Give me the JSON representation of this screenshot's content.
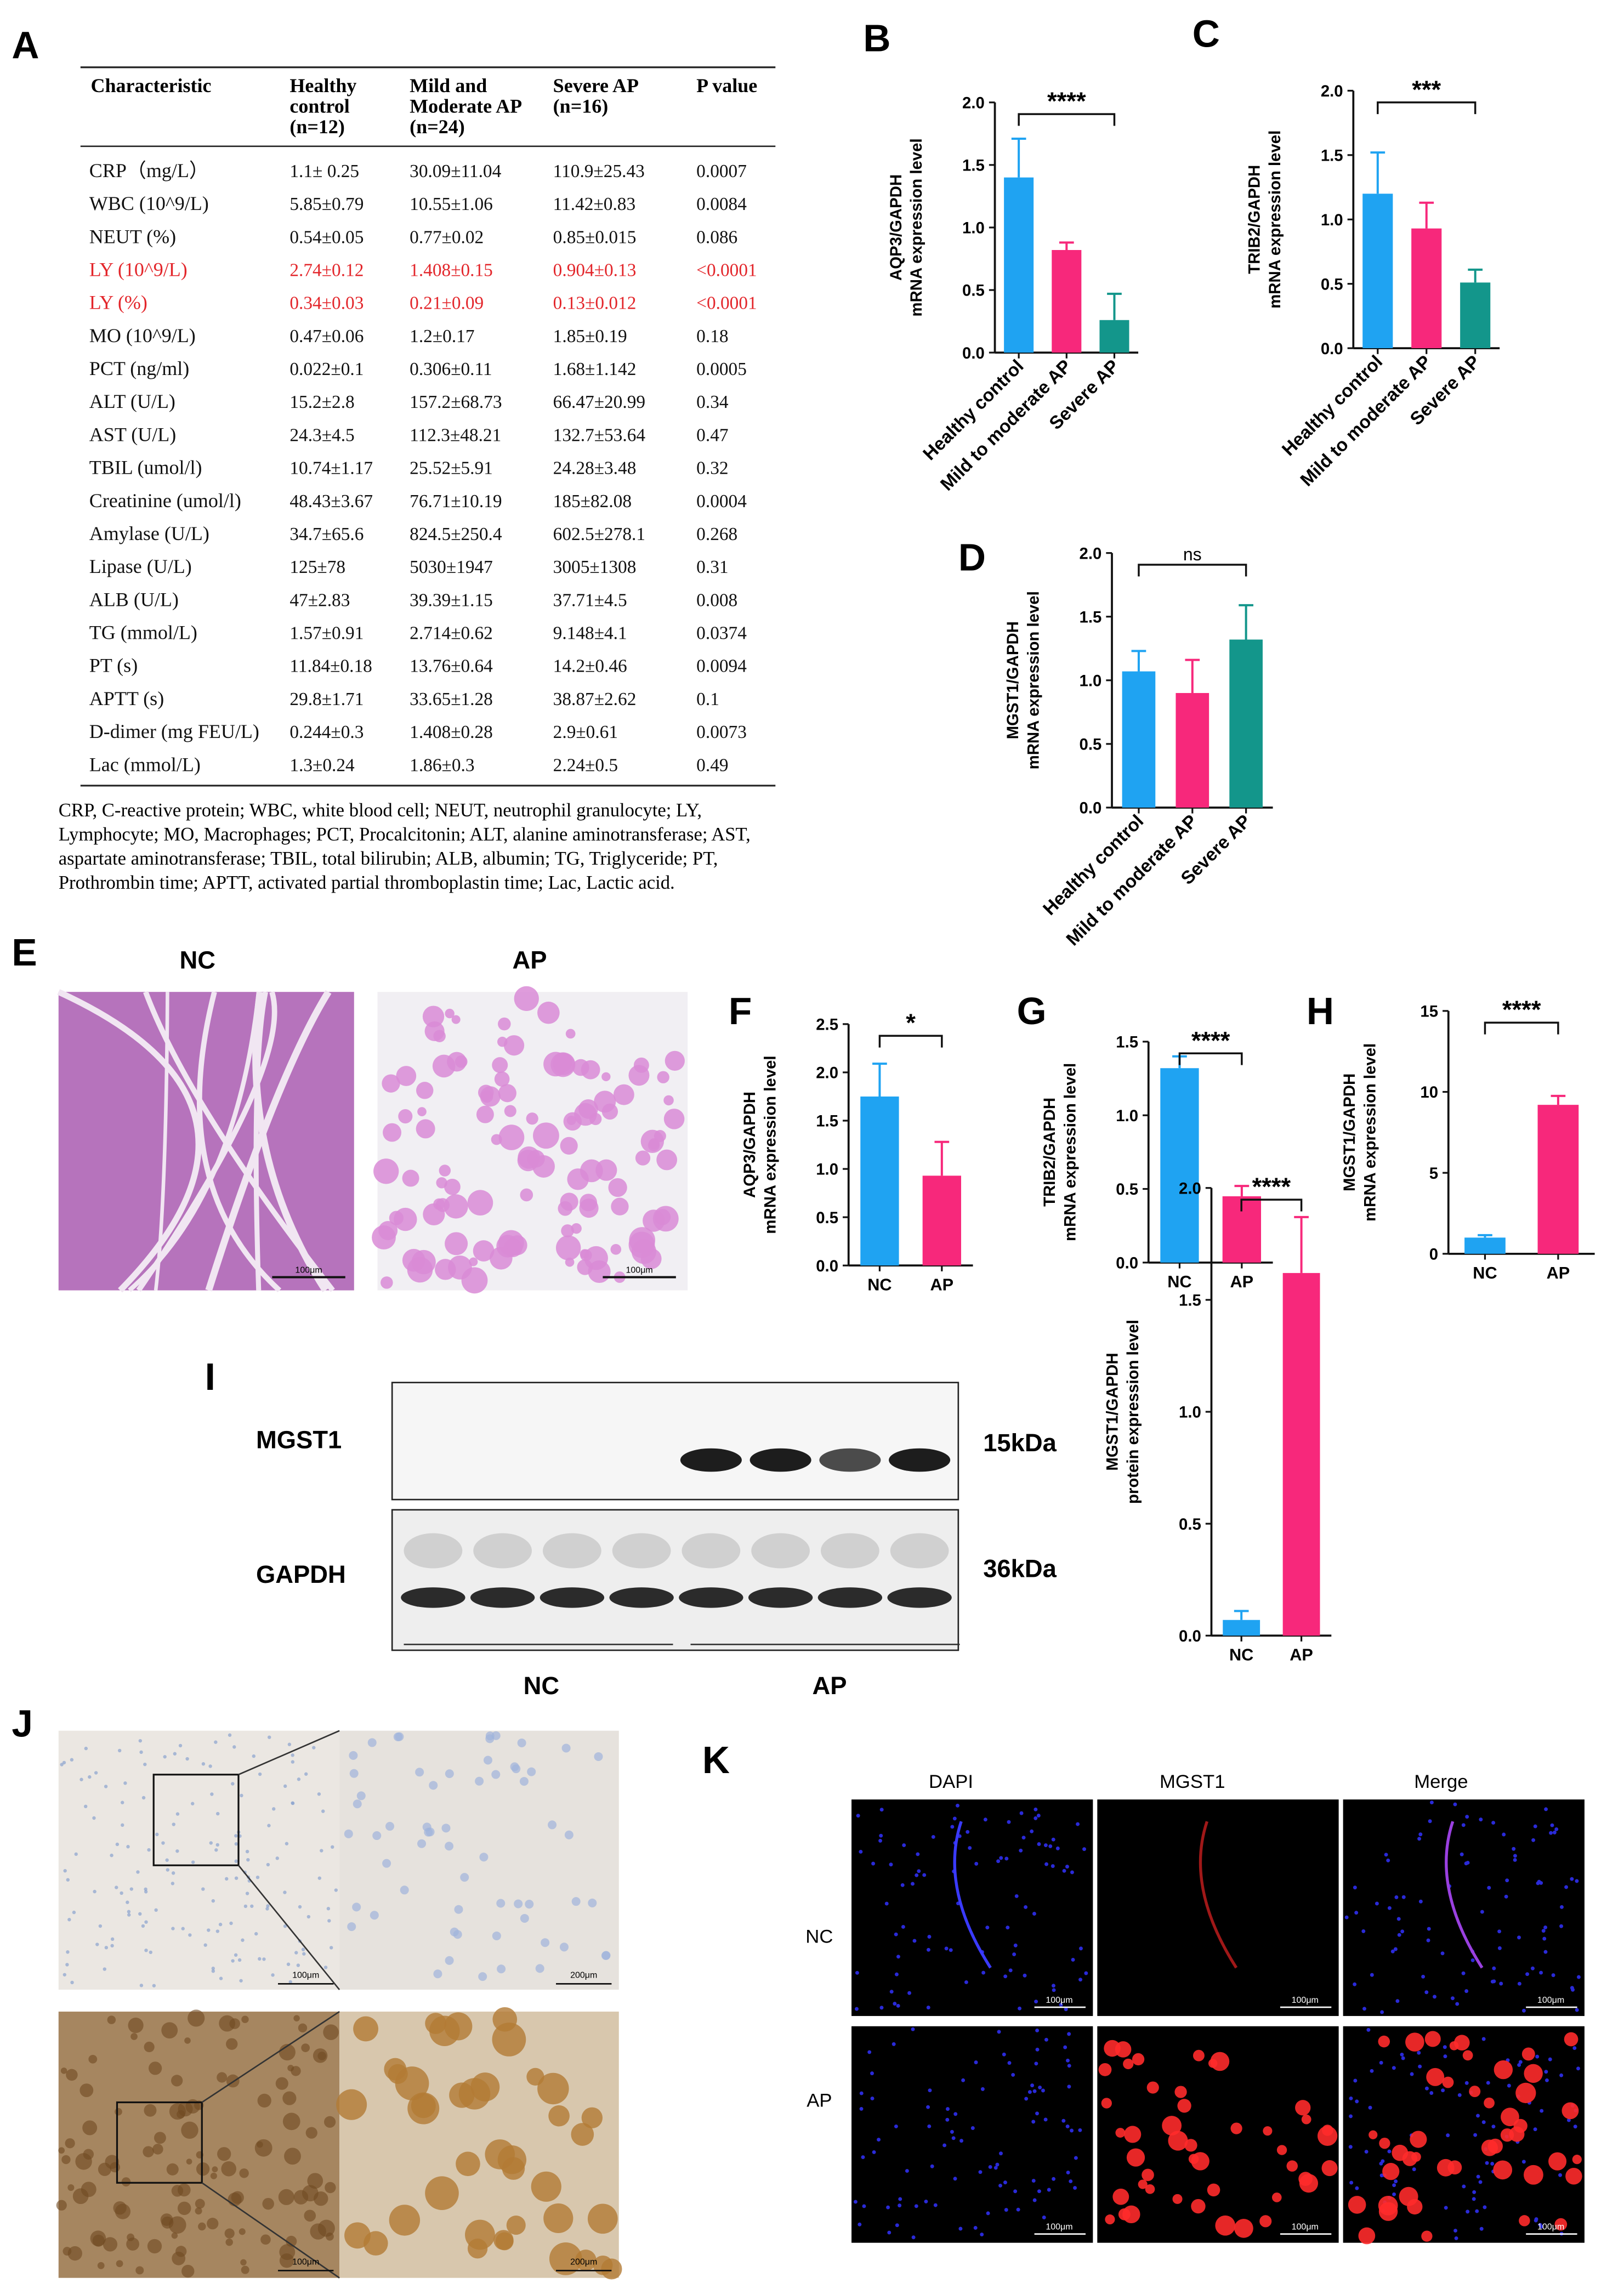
{
  "table": {
    "label": "A",
    "header": [
      [
        "Characteristic"
      ],
      [
        "Healthy",
        "control",
        "(n=12)"
      ],
      [
        "Mild and",
        "Moderate AP",
        "(n=24)"
      ],
      [
        "Severe AP",
        "(n=16)"
      ],
      [
        "P value"
      ]
    ],
    "rows": [
      {
        "cells": [
          "CRP（mg/L）",
          "1.1± 0.25",
          "30.09±11.04",
          "110.9±25.43",
          "0.0007"
        ]
      },
      {
        "cells": [
          "WBC (10^9/L)",
          "5.85±0.79",
          "10.55±1.06",
          "11.42±0.83",
          "0.0084"
        ]
      },
      {
        "cells": [
          "NEUT (%)",
          "0.54±0.05",
          "0.77±0.02",
          "0.85±0.015",
          "0.086"
        ]
      },
      {
        "cells": [
          "LY (10^9/L)",
          "2.74±0.12",
          "1.408±0.15",
          "0.904±0.13",
          "<0.0001"
        ],
        "color": "#e3262b"
      },
      {
        "cells": [
          "LY (%)",
          "0.34±0.03",
          "0.21±0.09",
          "0.13±0.012",
          "<0.0001"
        ],
        "color": "#e3262b"
      },
      {
        "cells": [
          "MO (10^9/L)",
          "0.47±0.06",
          "1.2±0.17",
          "1.85±0.19",
          "0.18"
        ]
      },
      {
        "cells": [
          "PCT (ng/ml)",
          "0.022±0.1",
          "0.306±0.11",
          "1.68±1.142",
          "0.0005"
        ]
      },
      {
        "cells": [
          "ALT (U/L)",
          "15.2±2.8",
          "157.2±68.73",
          "66.47±20.99",
          "0.34"
        ]
      },
      {
        "cells": [
          "AST (U/L)",
          "24.3±4.5",
          "112.3±48.21",
          "132.7±53.64",
          "0.47"
        ]
      },
      {
        "cells": [
          "TBIL (umol/l)",
          "10.74±1.17",
          "25.52±5.91",
          "24.28±3.48",
          "0.32"
        ]
      },
      {
        "cells": [
          "Creatinine (umol/l)",
          "48.43±3.67",
          "76.71±10.19",
          "185±82.08",
          "0.0004"
        ]
      },
      {
        "cells": [
          "Amylase (U/L)",
          "34.7±65.6",
          "824.5±250.4",
          "602.5±278.1",
          "0.268"
        ]
      },
      {
        "cells": [
          "Lipase (U/L)",
          "125±78",
          "5030±1947",
          "3005±1308",
          "0.31"
        ]
      },
      {
        "cells": [
          "ALB (U/L)",
          "47±2.83",
          "39.39±1.15",
          "37.71±4.5",
          "0.008"
        ]
      },
      {
        "cells": [
          "TG (mmol/L)",
          "1.57±0.91",
          "2.714±0.62",
          "9.148±4.1",
          "0.0374"
        ]
      },
      {
        "cells": [
          "PT (s)",
          "11.84±0.18",
          "13.76±0.64",
          "14.2±0.46",
          "0.0094"
        ]
      },
      {
        "cells": [
          "APTT (s)",
          "29.8±1.71",
          "33.65±1.28",
          "38.87±2.62",
          "0.1"
        ]
      },
      {
        "cells": [
          "D-dimer (mg FEU/L)",
          "0.244±0.3",
          "1.408±0.28",
          "2.9±0.61",
          "0.0073"
        ]
      },
      {
        "cells": [
          "Lac (mmol/L)",
          "1.3±0.24",
          "1.86±0.3",
          "2.24±0.5",
          "0.49"
        ]
      }
    ],
    "footnote": [
      "CRP, C-reactive protein; WBC, white blood cell; NEUT, neutrophil granulocyte; LY,",
      "Lymphocyte; MO, Macrophages; PCT, Procalcitonin; ALT, alanine aminotransferase; AST,",
      "aspartate aminotransferase; TBIL, total bilirubin; ALB, albumin; TG, Triglyceride; PT,",
      "Prothrombin time; APTT, activated partial thromboplastin time; Lac, Lactic acid."
    ]
  },
  "chart_data": [
    {
      "type": "bar",
      "label": "B",
      "ylabel": [
        "AQP3/GAPDH",
        "mRNA expression level"
      ],
      "categories": [
        "Healthy control",
        "Mild to moderate AP",
        "Severe AP"
      ],
      "values": [
        1.4,
        0.82,
        0.26
      ],
      "errors": [
        0.31,
        0.06,
        0.21
      ],
      "colors": [
        "#1fa3f2",
        "#f7287b",
        "#13968b"
      ],
      "ylim": [
        0,
        2
      ],
      "yticks": [
        {
          "value": 0,
          "label": "0.0"
        },
        0.5,
        {
          "value": 1,
          "label": "1.0"
        },
        1.5,
        {
          "value": 2,
          "label": "2.0"
        }
      ],
      "significance": "****"
    },
    {
      "type": "bar",
      "label": "C",
      "ylabel": [
        "TRIB2/GAPDH",
        "mRNA expression level"
      ],
      "categories": [
        "Healthy control",
        "Mild to moderate AP",
        "Severe AP"
      ],
      "values": [
        1.2,
        0.93,
        0.51
      ],
      "errors": [
        0.32,
        0.2,
        0.1
      ],
      "colors": [
        "#1fa3f2",
        "#f7287b",
        "#13968b"
      ],
      "ylim": [
        0,
        2
      ],
      "yticks": [
        {
          "value": 0,
          "label": "0.0"
        },
        0.5,
        {
          "value": 1,
          "label": "1.0"
        },
        1.5,
        {
          "value": 2,
          "label": "2.0"
        }
      ],
      "significance": "***"
    },
    {
      "type": "bar",
      "label": "D",
      "ylabel": [
        "MGST1/GAPDH",
        "mRNA expression level"
      ],
      "categories": [
        "Healthy control",
        "Mild to moderate AP",
        "Severe AP"
      ],
      "values": [
        1.07,
        0.9,
        1.32
      ],
      "errors": [
        0.16,
        0.26,
        0.27
      ],
      "colors": [
        "#1fa3f2",
        "#f7287b",
        "#13968b"
      ],
      "ylim": [
        0,
        2
      ],
      "yticks": [
        {
          "value": 0,
          "label": "0.0"
        },
        0.5,
        {
          "value": 1,
          "label": "1.0"
        },
        1.5,
        {
          "value": 2,
          "label": "2.0"
        }
      ],
      "significance": "ns"
    },
    {
      "type": "bar",
      "label": "F",
      "ylabel": [
        "AQP3/GAPDH",
        "mRNA expression level"
      ],
      "categories": [
        "NC",
        "AP"
      ],
      "values": [
        1.75,
        0.93
      ],
      "errors": [
        0.34,
        0.35
      ],
      "colors": [
        "#1fa3f2",
        "#f7287b"
      ],
      "ylim": [
        0,
        2.5
      ],
      "yticks": [
        {
          "value": 0,
          "label": "0.0"
        },
        0.5,
        {
          "value": 1,
          "label": "1.0"
        },
        1.5,
        {
          "value": 2,
          "label": "2.0"
        },
        2.5
      ],
      "significance": "*"
    },
    {
      "type": "bar",
      "label": "G",
      "ylabel": [
        "TRIB2/GAPDH",
        "mRNA expression level"
      ],
      "categories": [
        "NC",
        "AP"
      ],
      "values": [
        1.32,
        0.45
      ],
      "errors": [
        0.08,
        0.07
      ],
      "colors": [
        "#1fa3f2",
        "#f7287b"
      ],
      "ylim": [
        0,
        1.5
      ],
      "yticks": [
        {
          "value": 0,
          "label": "0.0"
        },
        0.5,
        {
          "value": 1,
          "label": "1.0"
        },
        1.5
      ],
      "significance": "****"
    },
    {
      "type": "bar",
      "label": "H",
      "ylabel": [
        "MGST1/GAPDH",
        "mRNA expression level"
      ],
      "categories": [
        "NC",
        "AP"
      ],
      "values": [
        1.0,
        9.2
      ],
      "errors": [
        0.15,
        0.55
      ],
      "colors": [
        "#1fa3f2",
        "#f7287b"
      ],
      "ylim": [
        0,
        15
      ],
      "yticks": [
        0,
        5,
        10,
        15
      ],
      "significance": "****"
    },
    {
      "type": "bar",
      "label": "I",
      "ylabel": [
        "MGST1/GAPDH",
        "protein expression level"
      ],
      "categories": [
        "NC",
        "AP"
      ],
      "values": [
        0.07,
        1.62
      ],
      "errors": [
        0.04,
        0.25
      ],
      "colors": [
        "#1fa3f2",
        "#f7287b"
      ],
      "ylim": [
        0,
        2
      ],
      "yticks": [
        {
          "value": 0,
          "label": "0.0"
        },
        0.5,
        {
          "value": 1,
          "label": "1.0"
        },
        1.5,
        {
          "value": 2,
          "label": "2.0"
        }
      ],
      "significance": "****"
    }
  ],
  "histology": {
    "label": "E",
    "groups": [
      "NC",
      "AP"
    ],
    "scale_bars": [
      "100μm",
      "100μm"
    ]
  },
  "western_blot": {
    "proteins": [
      "MGST1",
      "GAPDH"
    ],
    "sizes": [
      "15kDa",
      "36kDa"
    ],
    "groups": [
      "NC",
      "AP"
    ]
  },
  "ihc": {
    "label": "J",
    "scale_bars": [
      "100μm",
      "200μm",
      "100μm",
      "200μm"
    ]
  },
  "immunofluorescence": {
    "label": "K",
    "channels": [
      "DAPI",
      "MGST1",
      "Merge"
    ],
    "groups": [
      "NC",
      "AP"
    ],
    "scale_bar": "100μm"
  }
}
